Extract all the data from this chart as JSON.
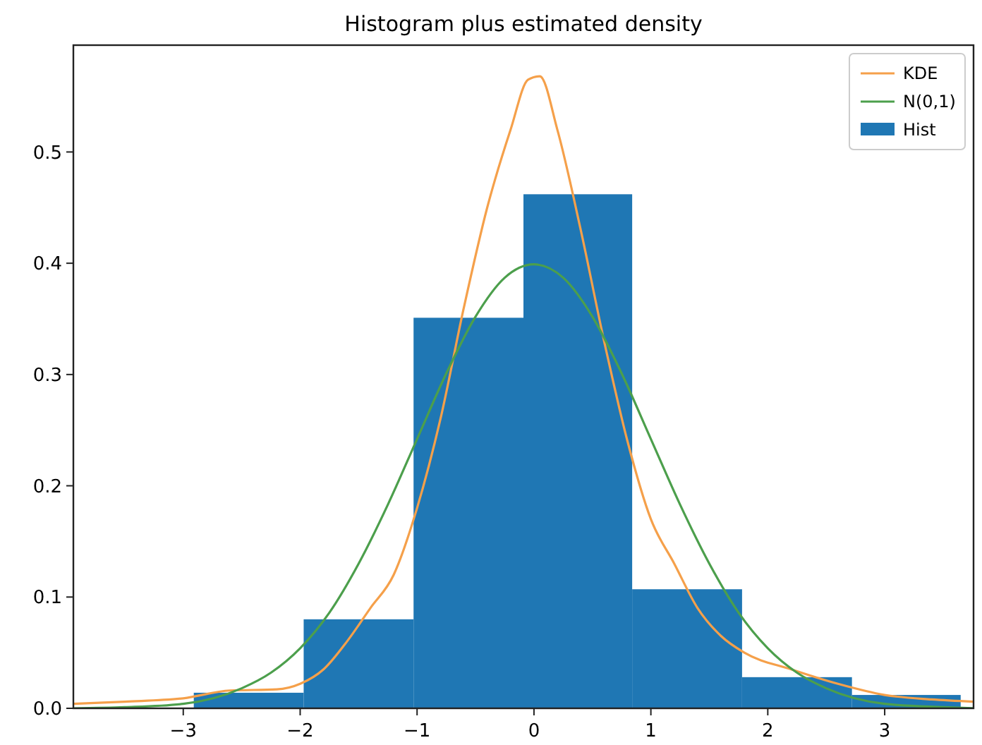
{
  "chart_data": {
    "type": "histogram",
    "title": "Histogram plus estimated density",
    "bins": [
      -2.91,
      -1.97,
      -1.03,
      -0.09,
      0.84,
      1.78,
      2.72,
      3.65
    ],
    "series": [
      {
        "name": "KDE",
        "type": "line",
        "color": "#f5a04a",
        "x": [
          -3.94,
          -3.5,
          -3.0,
          -2.6,
          -2.2,
          -2.0,
          -1.8,
          -1.6,
          -1.4,
          -1.2,
          -1.0,
          -0.8,
          -0.6,
          -0.4,
          -0.2,
          -0.05,
          0.05,
          0.2,
          0.4,
          0.6,
          0.8,
          1.0,
          1.2,
          1.4,
          1.6,
          1.8,
          2.2,
          2.6,
          3.0,
          3.4,
          3.76
        ],
        "values": [
          0.004,
          0.006,
          0.009,
          0.016,
          0.017,
          0.022,
          0.035,
          0.06,
          0.09,
          0.12,
          0.18,
          0.26,
          0.36,
          0.45,
          0.52,
          0.565,
          0.568,
          0.52,
          0.43,
          0.33,
          0.24,
          0.17,
          0.13,
          0.09,
          0.065,
          0.05,
          0.035,
          0.022,
          0.012,
          0.008,
          0.006
        ]
      },
      {
        "name": "N(0,1)",
        "type": "line",
        "color": "#4c9f4c",
        "x": [
          -3.94,
          -3.5,
          -3.0,
          -2.5,
          -2.25,
          -2.0,
          -1.75,
          -1.5,
          -1.25,
          -1.0,
          -0.75,
          -0.5,
          -0.25,
          0,
          0.25,
          0.5,
          0.75,
          1.0,
          1.25,
          1.5,
          1.75,
          2.0,
          2.25,
          2.5,
          3.0,
          3.5,
          3.76
        ],
        "values": [
          0.0,
          0.001,
          0.004,
          0.018,
          0.032,
          0.054,
          0.086,
          0.13,
          0.183,
          0.242,
          0.301,
          0.352,
          0.387,
          0.399,
          0.387,
          0.352,
          0.301,
          0.242,
          0.183,
          0.13,
          0.086,
          0.054,
          0.032,
          0.018,
          0.004,
          0.001,
          0.0
        ]
      },
      {
        "name": "Hist",
        "color": "#1f77b4",
        "values": [
          0.014,
          0.08,
          0.351,
          0.462,
          0.107,
          0.028,
          0.012
        ]
      }
    ],
    "xlim": [
      -3.94,
      3.76
    ],
    "ylim": [
      0,
      0.596
    ],
    "xticks": [
      {
        "value": -3,
        "label": "−3"
      },
      {
        "value": -2,
        "label": "−2"
      },
      {
        "value": -1,
        "label": "−1"
      },
      0,
      1,
      2,
      3
    ],
    "yticks": [
      {
        "value": 0,
        "label": "0.0"
      },
      0.1,
      0.2,
      0.3,
      0.4,
      0.5
    ],
    "legend": "top right",
    "grid": false
  }
}
